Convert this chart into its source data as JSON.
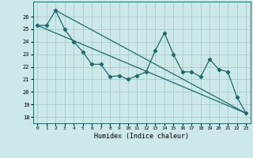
{
  "xlabel": "Humidex (Indice chaleur)",
  "background_color": "#cce8e8",
  "grid_color": "#aacccc",
  "line_color": "#1a6b6b",
  "marker_style": "D",
  "marker_size": 2.2,
  "line_width": 0.9,
  "ylim": [
    17.5,
    27.2
  ],
  "xlim": [
    -0.5,
    23.5
  ],
  "yticks": [
    18,
    19,
    20,
    21,
    22,
    23,
    24,
    25,
    26
  ],
  "xticks": [
    0,
    1,
    2,
    3,
    4,
    5,
    6,
    7,
    8,
    9,
    10,
    11,
    12,
    13,
    14,
    15,
    16,
    17,
    18,
    19,
    20,
    21,
    22,
    23
  ],
  "series1_x": [
    0,
    1,
    2,
    3,
    4,
    5,
    6,
    7,
    8,
    9,
    10,
    11,
    12,
    13,
    14,
    15,
    16,
    17,
    18,
    19,
    20,
    21,
    22,
    23
  ],
  "series1_y": [
    25.3,
    25.3,
    26.5,
    25.0,
    24.0,
    23.2,
    22.2,
    22.2,
    21.2,
    21.3,
    21.0,
    21.3,
    21.6,
    23.3,
    24.7,
    23.0,
    21.6,
    21.6,
    21.2,
    22.6,
    21.8,
    21.6,
    19.6,
    18.3
  ],
  "series2_x": [
    0,
    23
  ],
  "series2_y": [
    25.3,
    18.3
  ],
  "series3_x": [
    2,
    23
  ],
  "series3_y": [
    26.5,
    18.3
  ]
}
